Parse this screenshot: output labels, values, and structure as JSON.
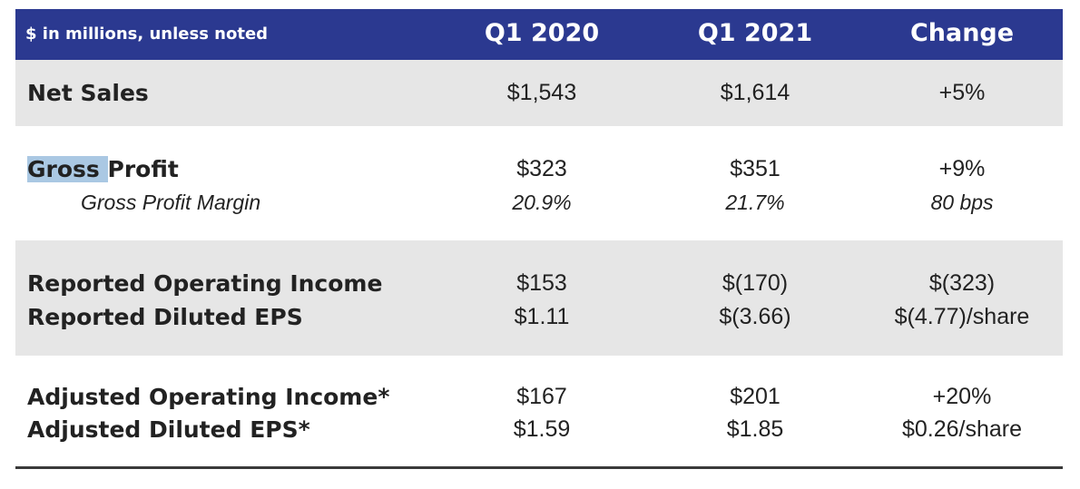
{
  "header": {
    "corner_label": "$ in millions, unless noted",
    "columns": [
      "Q1 2020",
      "Q1 2021",
      "Change"
    ]
  },
  "rows": {
    "net_sales": {
      "label": "Net Sales",
      "q1_2020": "$1,543",
      "q1_2021": "$1,614",
      "change": "+5%"
    },
    "gross_profit": {
      "label_highlighted": "Gross ",
      "label_rest": "Profit",
      "q1_2020": "$323",
      "q1_2021": "$351",
      "change": "+9%",
      "margin": {
        "label": "Gross Profit Margin",
        "q1_2020": "20.9%",
        "q1_2021": "21.7%",
        "change": "80 bps"
      }
    },
    "reported": {
      "operating_income": {
        "label": "Reported Operating Income",
        "q1_2020": "$153",
        "q1_2021": "$(170)",
        "change": "$(323)"
      },
      "diluted_eps": {
        "label": "Reported Diluted EPS",
        "q1_2020": "$1.11",
        "q1_2021": "$(3.66)",
        "change": "$(4.77)/share"
      }
    },
    "adjusted": {
      "operating_income": {
        "label": "Adjusted Operating Income*",
        "q1_2020": "$167",
        "q1_2021": "$201",
        "change": "+20%"
      },
      "diluted_eps": {
        "label": "Adjusted Diluted EPS*",
        "q1_2020": "$1.59",
        "q1_2021": "$1.85",
        "change": "$0.26/share"
      }
    }
  },
  "colors": {
    "header_bg": "#2b3990",
    "band_gray": "#e6e6e6",
    "highlight": "#aac8e3"
  }
}
